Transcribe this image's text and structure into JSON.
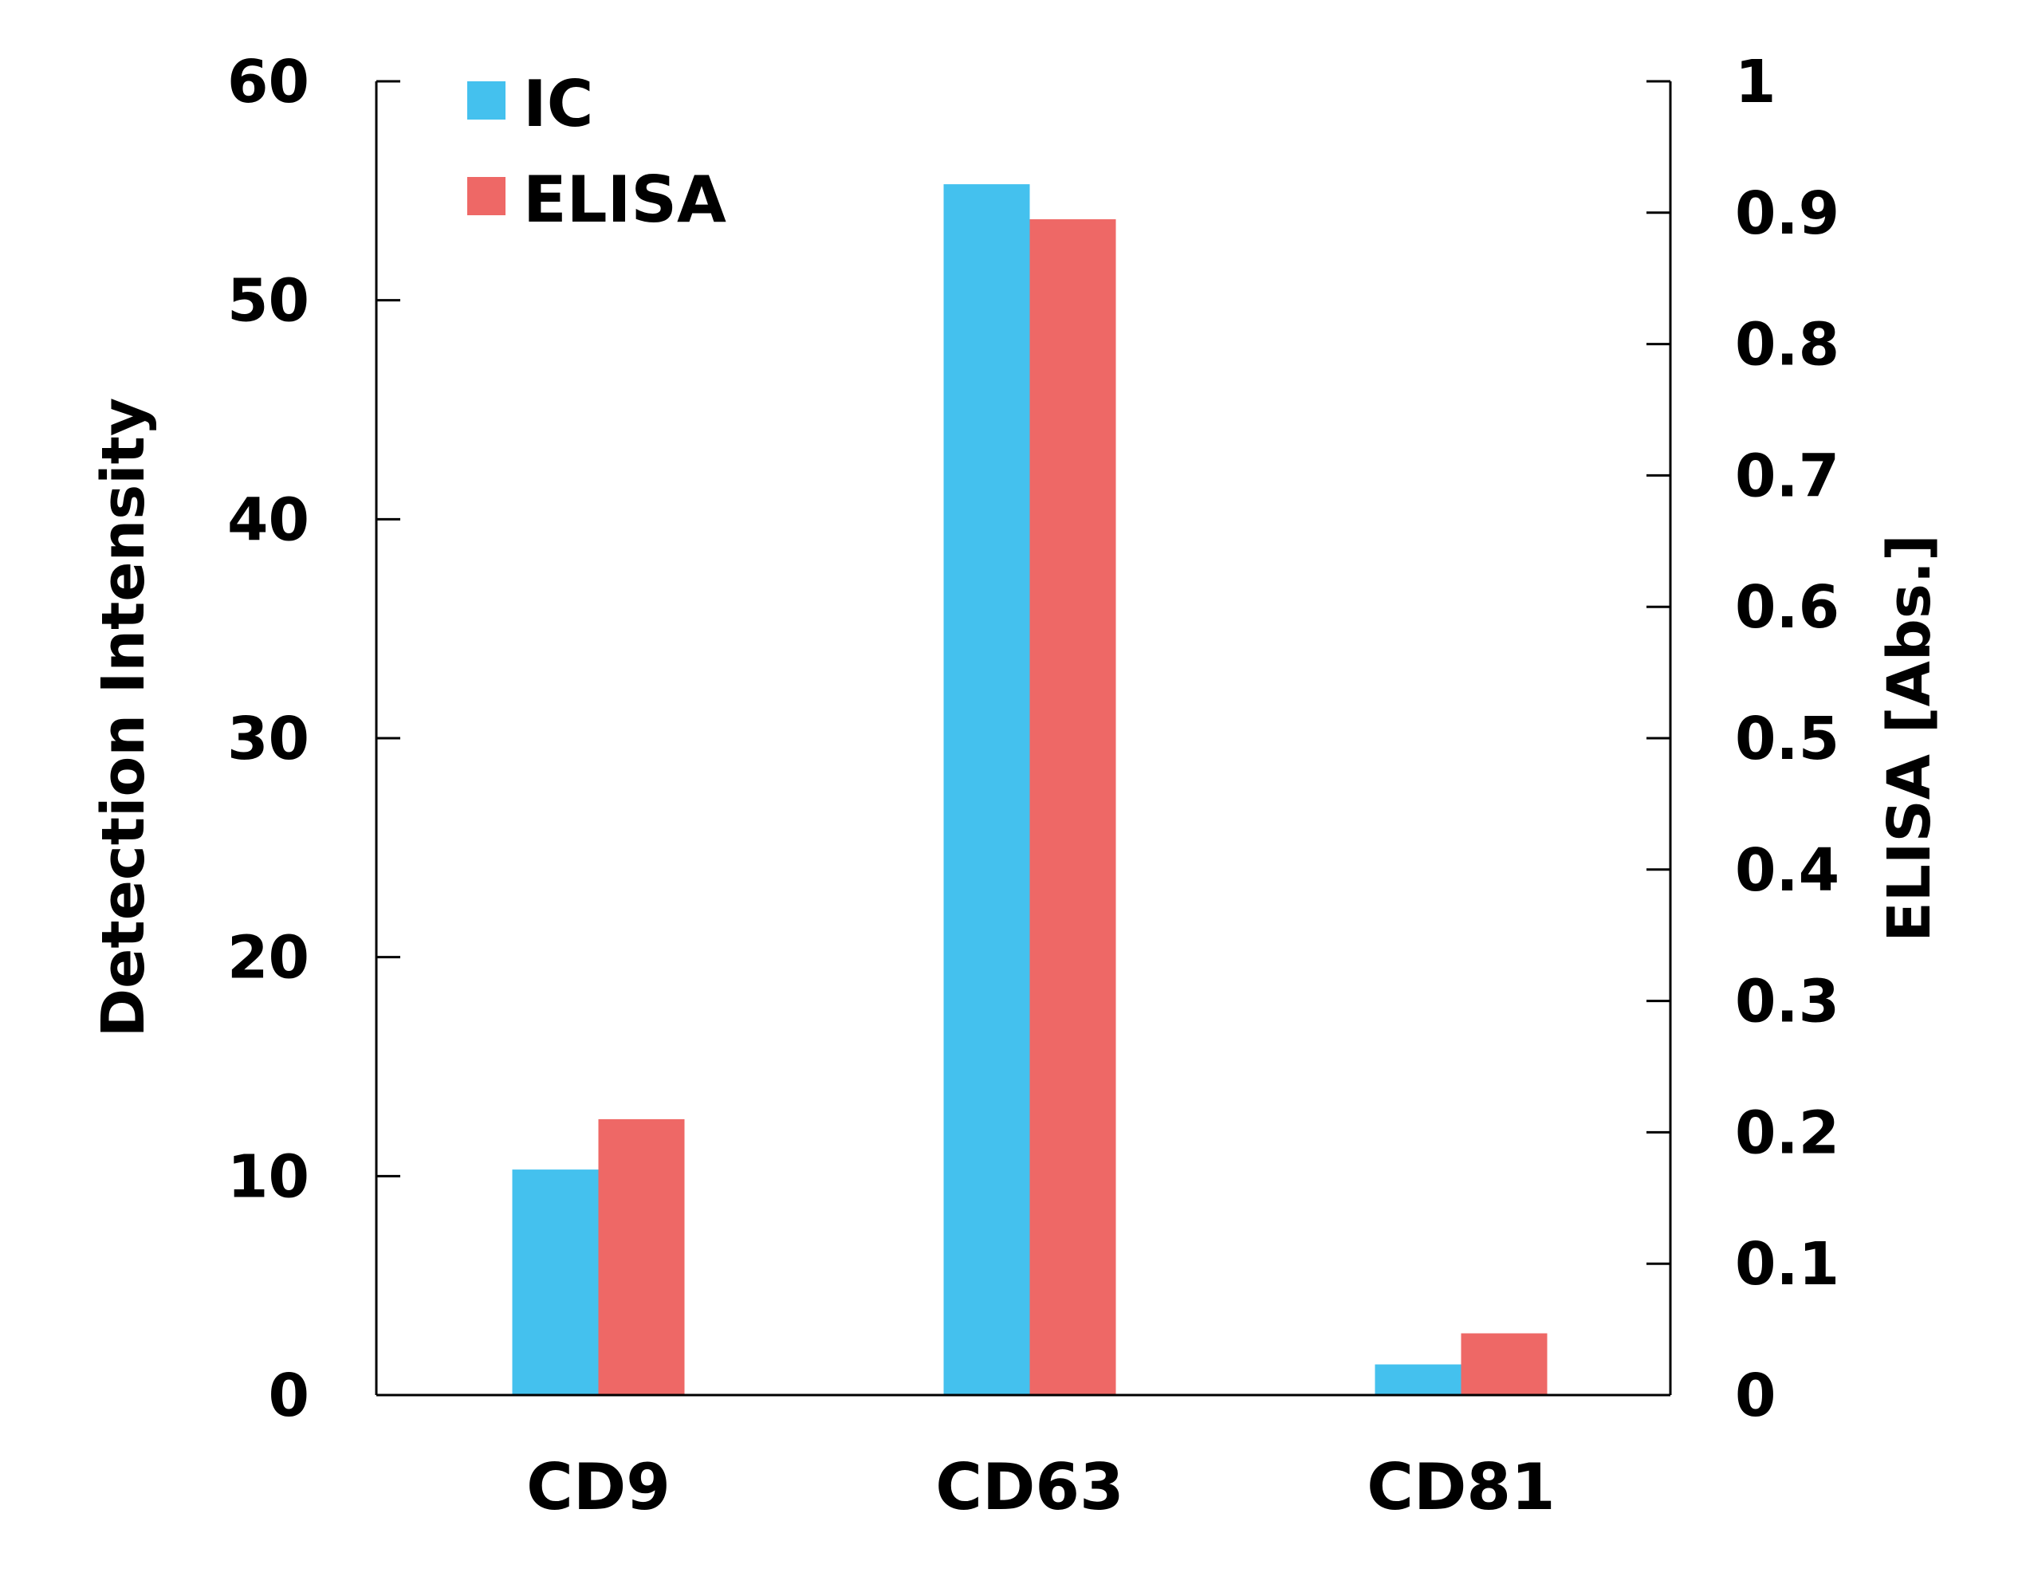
{
  "chart_data": {
    "type": "bar",
    "categories": [
      "CD9",
      "CD63",
      "CD81"
    ],
    "series": [
      {
        "name": "IC",
        "axis": "left",
        "color": "#44C1EE",
        "values": [
          10.3,
          55.3,
          1.4
        ]
      },
      {
        "name": "ELISA",
        "axis": "right",
        "color": "#EE6866",
        "values": [
          0.21,
          0.895,
          0.047
        ]
      }
    ],
    "ylabel": "Detection Intensity",
    "ylim": [
      0,
      60
    ],
    "yticks": [
      "0",
      "10",
      "20",
      "30",
      "40",
      "50",
      "60"
    ],
    "y2label": "ELISA [Abs.]",
    "y2lim": [
      0,
      1
    ],
    "y2ticks": [
      "0",
      "0.1",
      "0.2",
      "0.3",
      "0.4",
      "0.5",
      "0.6",
      "0.7",
      "0.8",
      "0.9",
      "1"
    ],
    "legend": "top-left",
    "grid": false
  }
}
